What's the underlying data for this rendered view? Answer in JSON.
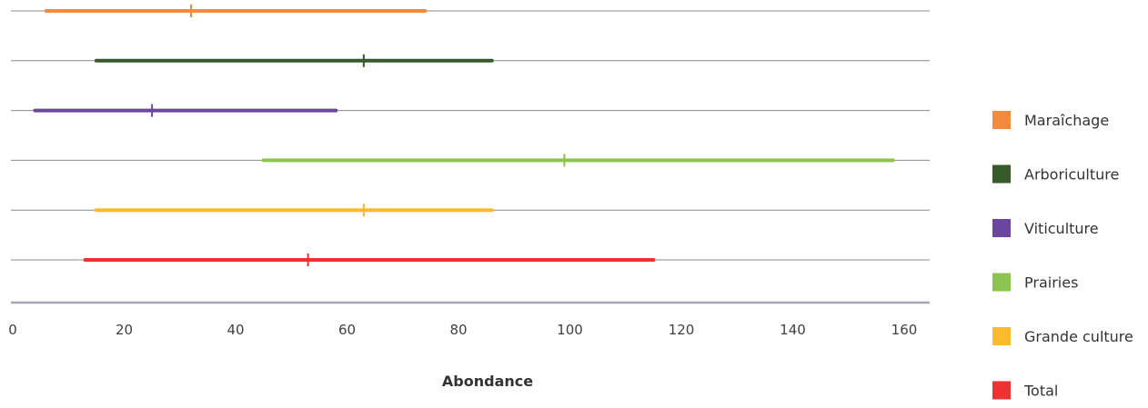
{
  "chart_data": {
    "type": "range",
    "xlabel": "Abondance",
    "xlim": [
      0,
      165
    ],
    "xticks": [
      "0",
      "20",
      "40",
      "60",
      "80",
      "100",
      "120",
      "140",
      "160"
    ],
    "xtick_values": [
      0,
      20,
      40,
      60,
      80,
      100,
      120,
      140,
      160
    ],
    "legend_position": "right",
    "gridlines": true,
    "series": [
      {
        "name": "Maraîchage",
        "color": "#F58A3C",
        "min": 6,
        "max": 74,
        "mid": 32
      },
      {
        "name": "Arboriculture",
        "color": "#365A2A",
        "min": 15,
        "max": 86,
        "mid": 63
      },
      {
        "name": "Viticulture",
        "color": "#6B45A0",
        "min": 4,
        "max": 58,
        "mid": 25
      },
      {
        "name": "Prairies",
        "color": "#8DC350",
        "min": 45,
        "max": 158,
        "mid": 99
      },
      {
        "name": "Grande culture",
        "color": "#FBBA2D",
        "min": 15,
        "max": 86,
        "mid": 63
      },
      {
        "name": "Total",
        "color": "#EF3131",
        "min": 13,
        "max": 115,
        "mid": 53
      }
    ]
  }
}
